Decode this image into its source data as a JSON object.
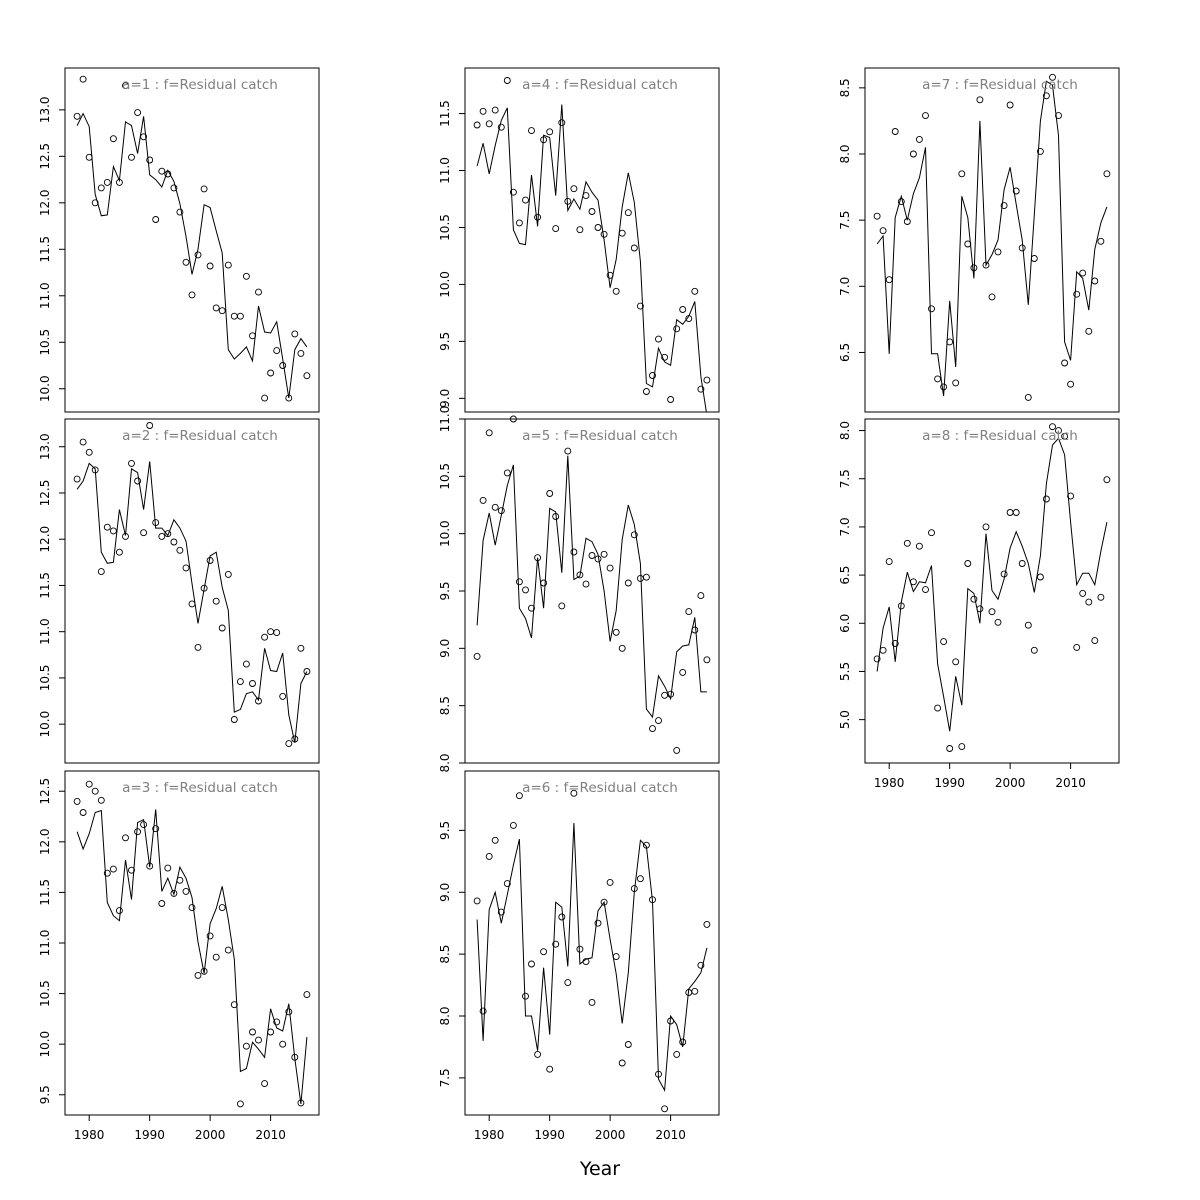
{
  "figure": {
    "xlabel": "Year",
    "line_color": "#000000",
    "title_color": "#808080",
    "x_ticks": [
      1980,
      1990,
      2000,
      2010
    ],
    "years_start": 1978,
    "years_end": 2016
  },
  "chart_data": [
    {
      "type": "scatter+line",
      "title": "a=1 : f=Residual catch",
      "xlim": [
        1976,
        2018
      ],
      "ylim": [
        9.75,
        13.45
      ],
      "y_ticks": [
        10.0,
        10.5,
        11.0,
        11.5,
        12.0,
        12.5,
        13.0
      ],
      "x": [
        1978,
        1979,
        1980,
        1981,
        1982,
        1983,
        1984,
        1985,
        1986,
        1987,
        1988,
        1989,
        1990,
        1991,
        1992,
        1993,
        1994,
        1995,
        1996,
        1997,
        1998,
        1999,
        2000,
        2001,
        2002,
        2003,
        2004,
        2005,
        2006,
        2007,
        2008,
        2009,
        2010,
        2011,
        2012,
        2013,
        2014,
        2015,
        2016
      ],
      "observed": [
        12.93,
        13.33,
        12.49,
        12.0,
        12.16,
        12.22,
        12.69,
        12.22,
        13.26,
        12.49,
        12.97,
        12.71,
        12.46,
        11.82,
        12.34,
        12.31,
        12.16,
        11.9,
        11.36,
        11.01,
        11.44,
        12.15,
        11.32,
        10.87,
        10.84,
        11.33,
        10.78,
        10.78,
        11.21,
        10.57,
        11.04,
        9.9,
        10.17,
        10.41,
        10.25,
        9.9,
        10.59,
        10.38,
        10.14
      ],
      "fitted": [
        12.83,
        12.96,
        12.82,
        12.09,
        11.86,
        11.87,
        12.39,
        12.24,
        12.87,
        12.83,
        12.53,
        12.93,
        12.3,
        12.25,
        12.17,
        12.35,
        12.23,
        11.99,
        11.64,
        11.23,
        11.5,
        11.98,
        11.95,
        11.7,
        11.46,
        10.42,
        10.32,
        10.38,
        10.45,
        10.3,
        10.89,
        10.61,
        10.6,
        10.72,
        10.32,
        9.9,
        10.42,
        10.54,
        10.45
      ]
    },
    {
      "type": "scatter+line",
      "title": "a=2 : f=Residual catch",
      "xlim": [
        1976,
        2018
      ],
      "ylim": [
        9.58,
        13.3
      ],
      "y_ticks": [
        10.0,
        10.5,
        11.0,
        11.5,
        12.0,
        12.5,
        13.0
      ],
      "x": [
        1978,
        1979,
        1980,
        1981,
        1982,
        1983,
        1984,
        1985,
        1986,
        1987,
        1988,
        1989,
        1990,
        1991,
        1992,
        1993,
        1994,
        1995,
        1996,
        1997,
        1998,
        1999,
        2000,
        2001,
        2002,
        2003,
        2004,
        2005,
        2006,
        2007,
        2008,
        2009,
        2010,
        2011,
        2012,
        2013,
        2014,
        2015,
        2016
      ],
      "observed": [
        12.65,
        13.05,
        12.94,
        12.75,
        11.65,
        12.13,
        12.09,
        11.86,
        12.03,
        12.82,
        12.63,
        12.07,
        13.23,
        12.18,
        12.03,
        12.06,
        11.97,
        11.88,
        11.69,
        11.3,
        10.83,
        11.47,
        11.77,
        11.33,
        11.04,
        11.62,
        10.05,
        10.46,
        10.65,
        10.44,
        10.25,
        10.94,
        11.0,
        10.99,
        10.3,
        9.79,
        9.84,
        10.82,
        10.57
      ],
      "fitted": [
        12.54,
        12.63,
        12.82,
        12.76,
        11.86,
        11.74,
        11.75,
        12.32,
        12.04,
        12.76,
        12.72,
        12.32,
        12.84,
        12.12,
        12.12,
        12.04,
        12.21,
        12.12,
        11.98,
        11.52,
        11.09,
        11.46,
        11.82,
        11.86,
        11.48,
        11.23,
        10.13,
        10.16,
        10.33,
        10.35,
        10.26,
        10.82,
        10.58,
        10.57,
        10.77,
        10.1,
        9.8,
        10.44,
        10.57
      ]
    },
    {
      "type": "scatter+line",
      "title": "a=3 : f=Residual catch",
      "xlim": [
        1976,
        2018
      ],
      "ylim": [
        9.3,
        12.7
      ],
      "y_ticks": [
        9.5,
        10.0,
        10.5,
        11.0,
        11.5,
        12.0,
        12.5
      ],
      "x": [
        1978,
        1979,
        1980,
        1981,
        1982,
        1983,
        1984,
        1985,
        1986,
        1987,
        1988,
        1989,
        1990,
        1991,
        1992,
        1993,
        1994,
        1995,
        1996,
        1997,
        1998,
        1999,
        2000,
        2001,
        2002,
        2003,
        2004,
        2005,
        2006,
        2007,
        2008,
        2009,
        2010,
        2011,
        2012,
        2013,
        2014,
        2015,
        2016
      ],
      "observed": [
        12.4,
        12.29,
        12.57,
        12.5,
        12.41,
        11.69,
        11.73,
        11.32,
        12.04,
        11.72,
        12.1,
        12.17,
        11.76,
        12.13,
        11.39,
        11.74,
        11.49,
        11.62,
        11.51,
        11.35,
        10.68,
        10.72,
        11.07,
        10.86,
        11.35,
        10.93,
        10.39,
        9.41,
        9.98,
        10.12,
        10.04,
        9.61,
        10.12,
        10.22,
        10.0,
        10.32,
        9.87,
        9.42,
        10.49
      ],
      "fitted": [
        12.1,
        11.93,
        12.08,
        12.29,
        12.31,
        11.4,
        11.27,
        11.22,
        11.82,
        11.43,
        12.19,
        12.22,
        11.75,
        12.32,
        11.51,
        11.64,
        11.48,
        11.75,
        11.64,
        11.45,
        11.01,
        10.7,
        11.19,
        11.34,
        11.56,
        11.23,
        10.84,
        9.73,
        9.76,
        10.02,
        9.95,
        9.87,
        10.35,
        10.16,
        10.13,
        10.4,
        9.86,
        9.41,
        10.07
      ]
    },
    {
      "type": "scatter+line",
      "title": "a=4 : f=Residual catch",
      "xlim": [
        1976,
        2018
      ],
      "ylim": [
        8.88,
        11.9
      ],
      "y_ticks": [
        9.0,
        9.5,
        10.0,
        10.5,
        11.0,
        11.5
      ],
      "x": [
        1978,
        1979,
        1980,
        1981,
        1982,
        1983,
        1984,
        1985,
        1986,
        1987,
        1988,
        1989,
        1990,
        1991,
        1992,
        1993,
        1994,
        1995,
        1996,
        1997,
        1998,
        1999,
        2000,
        2001,
        2002,
        2003,
        2004,
        2005,
        2006,
        2007,
        2008,
        2009,
        2010,
        2011,
        2012,
        2013,
        2014,
        2015,
        2016
      ],
      "observed": [
        11.4,
        11.52,
        11.41,
        11.53,
        11.38,
        11.79,
        10.81,
        10.54,
        10.74,
        11.35,
        10.59,
        11.27,
        11.34,
        10.49,
        11.42,
        10.73,
        10.84,
        10.48,
        10.78,
        10.64,
        10.5,
        10.44,
        10.08,
        9.94,
        10.45,
        10.63,
        10.32,
        9.81,
        9.06,
        9.2,
        9.52,
        9.36,
        8.99,
        9.61,
        9.78,
        9.7,
        9.94,
        9.08,
        9.16
      ],
      "fitted": [
        11.04,
        11.24,
        10.97,
        11.22,
        11.44,
        11.55,
        10.48,
        10.36,
        10.35,
        10.96,
        10.51,
        11.31,
        11.29,
        10.78,
        11.58,
        10.65,
        10.75,
        10.66,
        10.9,
        10.81,
        10.74,
        10.39,
        9.97,
        10.22,
        10.68,
        10.98,
        10.72,
        10.2,
        9.13,
        9.1,
        9.44,
        9.32,
        9.29,
        9.69,
        9.65,
        9.72,
        9.85,
        9.19,
        8.85
      ]
    },
    {
      "type": "scatter+line",
      "title": "a=5 : f=Residual catch",
      "xlim": [
        1976,
        2018
      ],
      "ylim": [
        8.0,
        11.0
      ],
      "y_ticks": [
        8.0,
        8.5,
        9.0,
        9.5,
        10.0,
        10.5,
        11.0
      ],
      "x": [
        1978,
        1979,
        1980,
        1981,
        1982,
        1983,
        1984,
        1985,
        1986,
        1987,
        1988,
        1989,
        1990,
        1991,
        1992,
        1993,
        1994,
        1995,
        1996,
        1997,
        1998,
        1999,
        2000,
        2001,
        2002,
        2003,
        2004,
        2005,
        2006,
        2007,
        2008,
        2009,
        2010,
        2011,
        2012,
        2013,
        2014,
        2015,
        2016
      ],
      "observed": [
        8.93,
        10.29,
        10.88,
        10.23,
        10.2,
        10.53,
        11.0,
        9.58,
        9.51,
        9.35,
        9.79,
        9.57,
        10.35,
        10.15,
        9.37,
        10.72,
        9.84,
        9.64,
        9.56,
        9.81,
        9.78,
        9.82,
        9.7,
        9.14,
        9.0,
        9.57,
        9.99,
        9.61,
        9.62,
        8.3,
        8.37,
        8.59,
        8.6,
        8.11,
        8.79,
        9.32,
        9.16,
        9.46,
        8.9
      ],
      "fitted": [
        9.2,
        9.94,
        10.18,
        9.9,
        10.16,
        10.42,
        10.6,
        9.35,
        9.26,
        9.09,
        9.79,
        9.35,
        10.22,
        10.19,
        9.66,
        10.68,
        9.6,
        9.63,
        9.96,
        9.93,
        9.82,
        9.5,
        9.06,
        9.33,
        9.95,
        10.25,
        10.08,
        9.74,
        8.47,
        8.4,
        8.76,
        8.67,
        8.56,
        8.97,
        9.02,
        9.03,
        9.27,
        8.62,
        8.62
      ]
    },
    {
      "type": "scatter+line",
      "title": "a=6 : f=Residual catch",
      "xlim": [
        1976,
        2018
      ],
      "ylim": [
        7.2,
        9.98
      ],
      "y_ticks": [
        7.5,
        8.0,
        8.5,
        9.0,
        9.5
      ],
      "x": [
        1978,
        1979,
        1980,
        1981,
        1982,
        1983,
        1984,
        1985,
        1986,
        1987,
        1988,
        1989,
        1990,
        1991,
        1992,
        1993,
        1994,
        1995,
        1996,
        1997,
        1998,
        1999,
        2000,
        2001,
        2002,
        2003,
        2004,
        2005,
        2006,
        2007,
        2008,
        2009,
        2010,
        2011,
        2012,
        2013,
        2014,
        2015,
        2016
      ],
      "observed": [
        8.93,
        8.04,
        9.29,
        9.42,
        8.84,
        9.07,
        9.54,
        9.78,
        8.16,
        8.42,
        7.69,
        8.52,
        7.57,
        8.58,
        8.8,
        8.27,
        9.8,
        8.54,
        8.44,
        8.11,
        8.75,
        8.92,
        9.08,
        8.48,
        7.62,
        7.77,
        9.03,
        9.11,
        9.38,
        8.94,
        7.53,
        7.25,
        7.96,
        7.69,
        7.79,
        8.19,
        8.2,
        8.41,
        8.74
      ],
      "fitted": [
        8.78,
        7.8,
        8.86,
        9.0,
        8.75,
        8.98,
        9.22,
        9.43,
        8.0,
        8.0,
        7.72,
        8.39,
        7.85,
        8.92,
        8.88,
        8.4,
        9.56,
        8.42,
        8.46,
        8.47,
        8.85,
        8.92,
        8.62,
        8.34,
        7.94,
        8.35,
        9.0,
        9.42,
        9.37,
        8.93,
        7.49,
        7.4,
        8.0,
        7.93,
        7.75,
        8.22,
        8.28,
        8.35,
        8.55
      ]
    },
    {
      "type": "scatter+line",
      "title": "a=7 : f=Residual catch",
      "xlim": [
        1976,
        2018
      ],
      "ylim": [
        6.05,
        8.65
      ],
      "y_ticks": [
        6.5,
        7.0,
        7.5,
        8.0,
        8.5
      ],
      "x": [
        1978,
        1979,
        1980,
        1981,
        1982,
        1983,
        1984,
        1985,
        1986,
        1987,
        1988,
        1989,
        1990,
        1991,
        1992,
        1993,
        1994,
        1995,
        1996,
        1997,
        1998,
        1999,
        2000,
        2001,
        2002,
        2003,
        2004,
        2005,
        2006,
        2007,
        2008,
        2009,
        2010,
        2011,
        2012,
        2013,
        2014,
        2015,
        2016
      ],
      "observed": [
        7.53,
        7.42,
        7.05,
        8.17,
        7.64,
        7.49,
        8.0,
        8.11,
        8.29,
        6.83,
        6.3,
        6.24,
        6.58,
        6.27,
        7.85,
        7.32,
        7.14,
        8.41,
        7.16,
        6.92,
        7.26,
        7.61,
        8.37,
        7.72,
        7.29,
        6.16,
        7.21,
        8.02,
        8.44,
        8.58,
        8.29,
        6.42,
        6.26,
        6.94,
        7.1,
        6.66,
        7.04,
        7.34,
        7.85
      ],
      "fitted": [
        7.32,
        7.38,
        6.49,
        7.52,
        7.68,
        7.5,
        7.7,
        7.82,
        8.05,
        6.49,
        6.49,
        6.17,
        6.89,
        6.39,
        7.68,
        7.52,
        7.06,
        8.25,
        7.16,
        7.24,
        7.35,
        7.73,
        7.9,
        7.62,
        7.35,
        6.86,
        7.54,
        8.25,
        8.55,
        8.52,
        8.14,
        6.58,
        6.44,
        7.11,
        7.06,
        6.82,
        7.28,
        7.48,
        7.6
      ]
    },
    {
      "type": "scatter+line",
      "title": "a=8 : f=Residual catch",
      "xlim": [
        1976,
        2018
      ],
      "ylim": [
        4.55,
        8.12
      ],
      "y_ticks": [
        5.0,
        5.5,
        6.0,
        6.5,
        7.0,
        7.5,
        8.0
      ],
      "x": [
        1978,
        1979,
        1980,
        1981,
        1982,
        1983,
        1984,
        1985,
        1986,
        1987,
        1988,
        1989,
        1990,
        1991,
        1992,
        1993,
        1994,
        1995,
        1996,
        1997,
        1998,
        1999,
        2000,
        2001,
        2002,
        2003,
        2004,
        2005,
        2006,
        2007,
        2008,
        2009,
        2010,
        2011,
        2012,
        2013,
        2014,
        2015,
        2016
      ],
      "observed": [
        5.63,
        5.72,
        6.64,
        5.79,
        6.18,
        6.83,
        6.43,
        6.8,
        6.35,
        6.94,
        5.12,
        5.81,
        4.7,
        5.6,
        4.72,
        6.62,
        6.25,
        6.15,
        7.0,
        6.12,
        6.01,
        6.51,
        7.15,
        7.15,
        6.62,
        5.98,
        5.72,
        6.48,
        7.29,
        8.04,
        8.0,
        7.94,
        7.32,
        5.75,
        6.31,
        6.22,
        5.82,
        6.27,
        7.49
      ],
      "fitted": [
        5.5,
        5.95,
        6.17,
        5.6,
        6.22,
        6.53,
        6.33,
        6.43,
        6.42,
        6.6,
        5.58,
        5.24,
        4.88,
        5.45,
        5.15,
        6.36,
        6.31,
        6.0,
        6.93,
        6.34,
        6.25,
        6.46,
        6.78,
        6.95,
        6.8,
        6.62,
        6.32,
        6.7,
        7.45,
        7.85,
        7.92,
        7.75,
        7.05,
        6.4,
        6.52,
        6.52,
        6.4,
        6.75,
        7.05
      ]
    }
  ]
}
